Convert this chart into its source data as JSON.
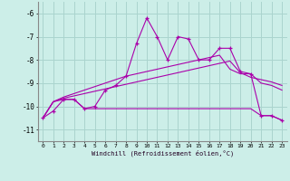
{
  "xlabel": "Windchill (Refroidissement éolien,°C)",
  "background_color": "#cceee8",
  "grid_color": "#aad4ce",
  "line_color": "#aa00aa",
  "x_values": [
    0,
    1,
    2,
    3,
    4,
    5,
    6,
    7,
    8,
    9,
    10,
    11,
    12,
    13,
    14,
    15,
    16,
    17,
    18,
    19,
    20,
    21,
    22,
    23
  ],
  "main_y": [
    -10.5,
    -10.2,
    -9.7,
    -9.7,
    -10.1,
    -10.0,
    -9.3,
    -9.1,
    -8.7,
    -7.3,
    -6.2,
    -7.0,
    -8.0,
    -7.0,
    -7.1,
    -8.0,
    -8.0,
    -7.5,
    -7.5,
    -8.5,
    -8.6,
    -10.4,
    -10.4,
    -10.6
  ],
  "line2_y": [
    -10.5,
    -9.8,
    -9.7,
    -9.7,
    -10.1,
    -10.1,
    -10.1,
    -10.1,
    -10.1,
    -10.1,
    -10.1,
    -10.1,
    -10.1,
    -10.1,
    -10.1,
    -10.1,
    -10.1,
    -10.1,
    -10.1,
    -10.1,
    -10.1,
    -10.4,
    -10.4,
    -10.6
  ],
  "line3_y": [
    -10.5,
    -9.8,
    -9.65,
    -9.55,
    -9.45,
    -9.35,
    -9.25,
    -9.15,
    -9.05,
    -8.95,
    -8.85,
    -8.75,
    -8.65,
    -8.55,
    -8.45,
    -8.35,
    -8.25,
    -8.15,
    -8.05,
    -8.55,
    -8.75,
    -8.85,
    -8.95,
    -9.1
  ],
  "line4_y": [
    -10.5,
    -9.8,
    -9.6,
    -9.45,
    -9.3,
    -9.15,
    -9.0,
    -8.85,
    -8.7,
    -8.6,
    -8.5,
    -8.4,
    -8.3,
    -8.2,
    -8.1,
    -8.0,
    -7.9,
    -7.8,
    -8.4,
    -8.6,
    -8.6,
    -9.0,
    -9.1,
    -9.3
  ],
  "ylim": [
    -11.5,
    -5.5
  ],
  "yticks": [
    -11,
    -10,
    -9,
    -8,
    -7,
    -6
  ],
  "xlim": [
    -0.5,
    23.5
  ]
}
